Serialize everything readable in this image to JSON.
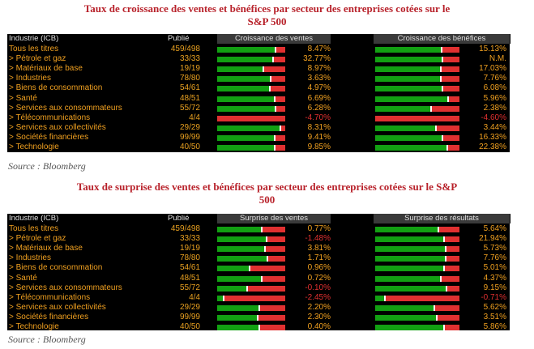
{
  "titles": {
    "top_line1": "Taux de croissance des ventes et bénéfices par secteur des entreprises cotées sur le",
    "top_line2": "S&P 500",
    "bottom_line1": "Taux de surprise des ventes et bénéfices par secteur des entreprises cotées sur le S&P",
    "bottom_line2": "500"
  },
  "source": "Source : Bloomberg",
  "table1": {
    "headers": {
      "industry": "Industrie (ICB)",
      "published": "Publié",
      "col1": "Croissance des ventes",
      "col2": "Croissance des bénéfices"
    },
    "rows": [
      {
        "label": "Tous les titres",
        "published": "459/498",
        "v1": "8.47%",
        "v1_sign": "pos",
        "v1_fill": 0.86,
        "v2": "15.13%",
        "v2_sign": "pos",
        "v2_fill": 0.79
      },
      {
        "label": "> Pétrole et gaz",
        "published": "33/33",
        "v1": "32.77%",
        "v1_sign": "pos",
        "v1_fill": 0.82,
        "v2": "N.M.",
        "v2_sign": "pos",
        "v2_fill": 0.8
      },
      {
        "label": "> Matériaux de base",
        "published": "19/19",
        "v1": "8.97%",
        "v1_sign": "pos",
        "v1_fill": 0.68,
        "v2": "17.03%",
        "v2_sign": "pos",
        "v2_fill": 0.78
      },
      {
        "label": "> Industries",
        "published": "78/80",
        "v1": "3.63%",
        "v1_sign": "pos",
        "v1_fill": 0.78,
        "v2": "7.76%",
        "v2_sign": "pos",
        "v2_fill": 0.78
      },
      {
        "label": "> Biens de consommation",
        "published": "54/61",
        "v1": "4.97%",
        "v1_sign": "pos",
        "v1_fill": 0.77,
        "v2": "6.08%",
        "v2_sign": "pos",
        "v2_fill": 0.8
      },
      {
        "label": "> Santé",
        "published": "48/51",
        "v1": "6.69%",
        "v1_sign": "pos",
        "v1_fill": 0.85,
        "v2": "5.96%",
        "v2_sign": "pos",
        "v2_fill": 0.87
      },
      {
        "label": "> Services aux consommateurs",
        "published": "55/72",
        "v1": "6.28%",
        "v1_sign": "pos",
        "v1_fill": 0.86,
        "v2": "2.38%",
        "v2_sign": "pos",
        "v2_fill": 0.66
      },
      {
        "label": "> Télécommunications",
        "published": "4/4",
        "v1": "-4.70%",
        "v1_sign": "neg",
        "v1_fill": 0.0,
        "v2": "-4.60%",
        "v2_sign": "neg",
        "v2_fill": 0.0
      },
      {
        "label": "> Services aux collectivités",
        "published": "29/29",
        "v1": "8.31%",
        "v1_sign": "pos",
        "v1_fill": 0.93,
        "v2": "3.44%",
        "v2_sign": "pos",
        "v2_fill": 0.72
      },
      {
        "label": "> Sociétés financières",
        "published": "99/99",
        "v1": "9.41%",
        "v1_sign": "pos",
        "v1_fill": 0.84,
        "v2": "16.33%",
        "v2_sign": "pos",
        "v2_fill": 0.8
      },
      {
        "label": "> Technologie",
        "published": "40/50",
        "v1": "9.85%",
        "v1_sign": "pos",
        "v1_fill": 0.84,
        "v2": "22.38%",
        "v2_sign": "pos",
        "v2_fill": 0.86
      }
    ]
  },
  "table2": {
    "headers": {
      "industry": "Industrie (ICB)",
      "published": "Publié",
      "col1": "Surprise des ventes",
      "col2": "Surprise des résultats"
    },
    "rows": [
      {
        "label": "Tous les titres",
        "published": "459/498",
        "v1": "0.77%",
        "v1_sign": "pos",
        "v1_fill": 0.66,
        "v2": "5.64%",
        "v2_sign": "pos",
        "v2_fill": 0.75
      },
      {
        "label": "> Pétrole et gaz",
        "published": "33/33",
        "v1": "-1.48%",
        "v1_sign": "neg",
        "v1_fill": 0.73,
        "v2": "21.94%",
        "v2_sign": "pos",
        "v2_fill": 0.82
      },
      {
        "label": "> Matériaux de base",
        "published": "19/19",
        "v1": "3.81%",
        "v1_sign": "pos",
        "v1_fill": 0.7,
        "v2": "5.73%",
        "v2_sign": "pos",
        "v2_fill": 0.84
      },
      {
        "label": "> Industries",
        "published": "78/80",
        "v1": "1.71%",
        "v1_sign": "pos",
        "v1_fill": 0.74,
        "v2": "7.76%",
        "v2_sign": "pos",
        "v2_fill": 0.84
      },
      {
        "label": "> Biens de consommation",
        "published": "54/61",
        "v1": "0.96%",
        "v1_sign": "pos",
        "v1_fill": 0.48,
        "v2": "5.01%",
        "v2_sign": "pos",
        "v2_fill": 0.82
      },
      {
        "label": "> Santé",
        "published": "48/51",
        "v1": "0.72%",
        "v1_sign": "pos",
        "v1_fill": 0.66,
        "v2": "4.37%",
        "v2_sign": "pos",
        "v2_fill": 0.78
      },
      {
        "label": "> Services aux consommateurs",
        "published": "55/72",
        "v1": "-0.10%",
        "v1_sign": "neg",
        "v1_fill": 0.44,
        "v2": "9.15%",
        "v2_sign": "pos",
        "v2_fill": 0.85
      },
      {
        "label": "> Télécommunications",
        "published": "4/4",
        "v1": "-2.45%",
        "v1_sign": "neg",
        "v1_fill": 0.1,
        "v2": "-0.71%",
        "v2_sign": "neg",
        "v2_fill": 0.12
      },
      {
        "label": "> Services aux collectivités",
        "published": "29/29",
        "v1": "2.20%",
        "v1_sign": "pos",
        "v1_fill": 0.62,
        "v2": "5.62%",
        "v2_sign": "pos",
        "v2_fill": 0.7
      },
      {
        "label": "> Sociétés financières",
        "published": "99/99",
        "v1": "2.30%",
        "v1_sign": "pos",
        "v1_fill": 0.6,
        "v2": "3.51%",
        "v2_sign": "pos",
        "v2_fill": 0.73
      },
      {
        "label": "> Technologie",
        "published": "40/50",
        "v1": "0.40%",
        "v1_sign": "pos",
        "v1_fill": 0.62,
        "v2": "5.86%",
        "v2_sign": "pos",
        "v2_fill": 0.82
      }
    ]
  },
  "colors": {
    "green": "#12a012",
    "red": "#e03030",
    "orange": "#f0a020",
    "title_red": "#b8222b"
  }
}
